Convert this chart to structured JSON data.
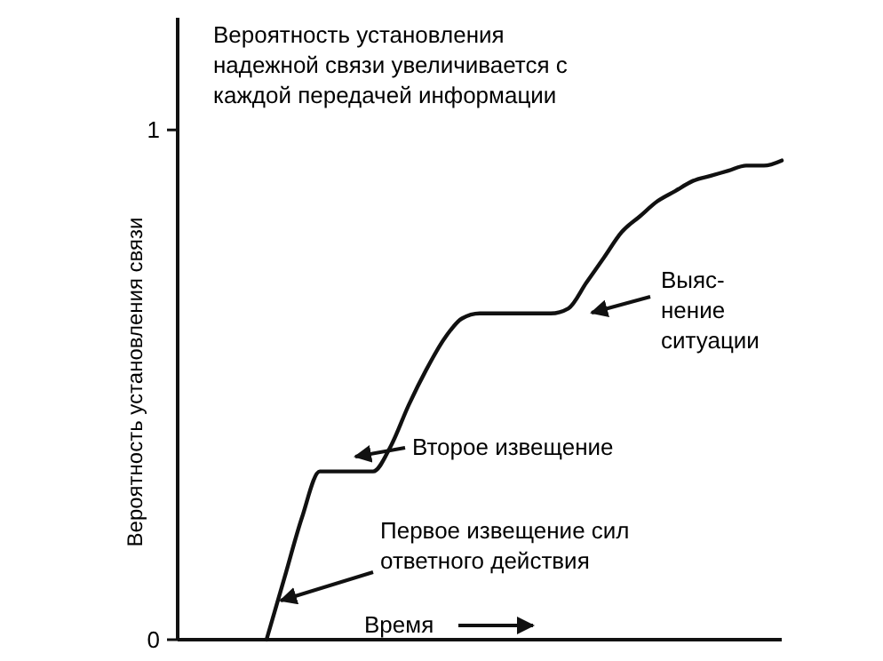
{
  "chart_data": {
    "type": "line",
    "xlabel": "Время",
    "ylabel": "Вероятность установления связи",
    "categories": [
      null,
      null,
      null,
      null,
      null,
      null,
      null,
      null,
      null,
      null,
      null,
      null,
      null,
      null,
      null,
      null,
      null,
      null,
      null,
      null,
      null,
      null,
      null,
      null,
      null,
      null,
      null,
      null,
      null,
      null,
      null,
      null,
      null,
      null,
      null
    ],
    "series": [
      {
        "color": "#111111",
        "values": [
          null,
          null,
          null,
          null,
          null,
          0,
          0.12,
          0.24,
          0.33,
          0.33,
          0.33,
          0.33,
          0.38,
          0.46,
          0.53,
          0.59,
          0.63,
          0.64,
          0.64,
          0.64,
          0.64,
          0.64,
          0.65,
          0.7,
          0.75,
          0.8,
          0.83,
          0.86,
          0.88,
          0.9,
          0.91,
          0.92,
          0.93,
          0.93,
          0.94
        ]
      }
    ],
    "ylim": [
      0,
      1.22
    ],
    "yticks": [
      0,
      1
    ],
    "tick_labels": "y",
    "marker": "none",
    "line_style": "solid",
    "annotations": [
      "Вероятность установления\nнадежной связи увеличивается с\nкаждой передачей информации",
      "Выяс-\nнение\nситуации",
      "Второе извещение",
      "Первое извещение сил\nответного действия"
    ]
  }
}
